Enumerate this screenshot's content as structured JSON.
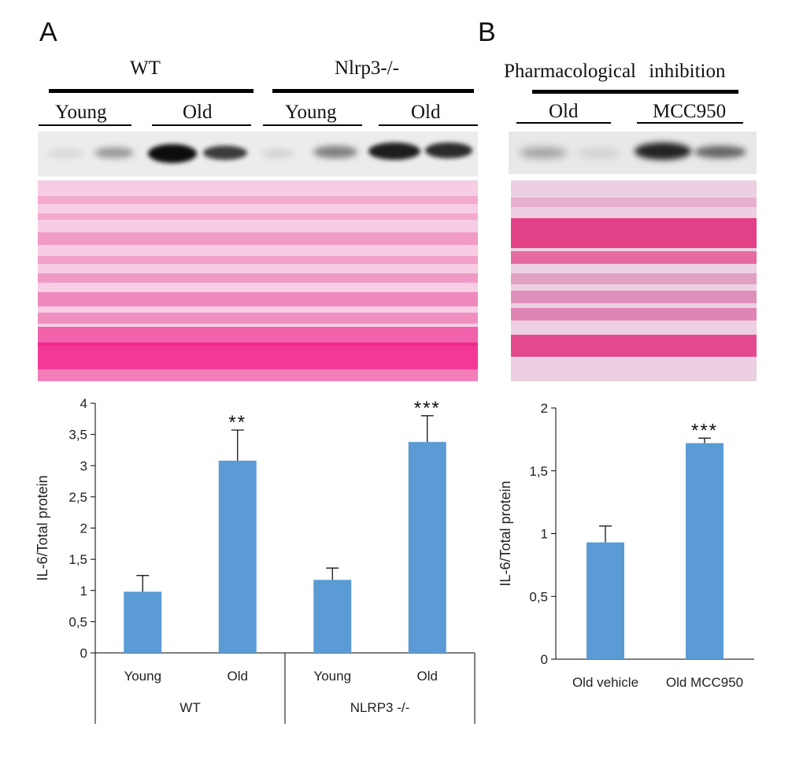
{
  "panels": [
    {
      "id": "A",
      "label": "A",
      "group_labels": [
        "WT",
        "Nlrp3-/-"
      ],
      "subgroup_labels": [
        "Young",
        "Old",
        "Young",
        "Old"
      ]
    },
    {
      "id": "B",
      "label": "B",
      "group_labels": [
        "Pharmacological inhibition"
      ],
      "subgroup_labels": [
        "Old",
        "MCC950"
      ]
    }
  ],
  "chart_data": [
    {
      "type": "bar",
      "panel": "A",
      "categories": [
        "Young",
        "Old",
        "Young",
        "Old"
      ],
      "category_groups": [
        {
          "label": "WT",
          "members": [
            "Young",
            "Old"
          ]
        },
        {
          "label": "NLRP3 -/-",
          "members": [
            "Young",
            "Old"
          ]
        }
      ],
      "values": [
        0.98,
        3.08,
        1.17,
        3.38
      ],
      "errors": [
        0.26,
        0.49,
        0.19,
        0.42
      ],
      "annotations": [
        "",
        "**",
        "",
        "***"
      ],
      "ylabel": "IL-6/Total protein",
      "ylim": [
        0,
        4
      ],
      "yticks": [
        "0",
        "0,5",
        "1",
        "1,5",
        "2",
        "2,5",
        "3",
        "3,5",
        "4"
      ],
      "bar_color": "#5b9bd5",
      "grid": false
    },
    {
      "type": "bar",
      "panel": "B",
      "categories": [
        "Old vehicle",
        "Old MCC950"
      ],
      "values": [
        0.93,
        1.72
      ],
      "errors": [
        0.13,
        0.04
      ],
      "annotations": [
        "",
        "***"
      ],
      "ylabel": "IL-6/Total protein",
      "ylim": [
        0,
        2
      ],
      "yticks": [
        "0",
        "0,5",
        "1",
        "1,5",
        "2"
      ],
      "bar_color": "#5b9bd5",
      "grid": false
    }
  ]
}
